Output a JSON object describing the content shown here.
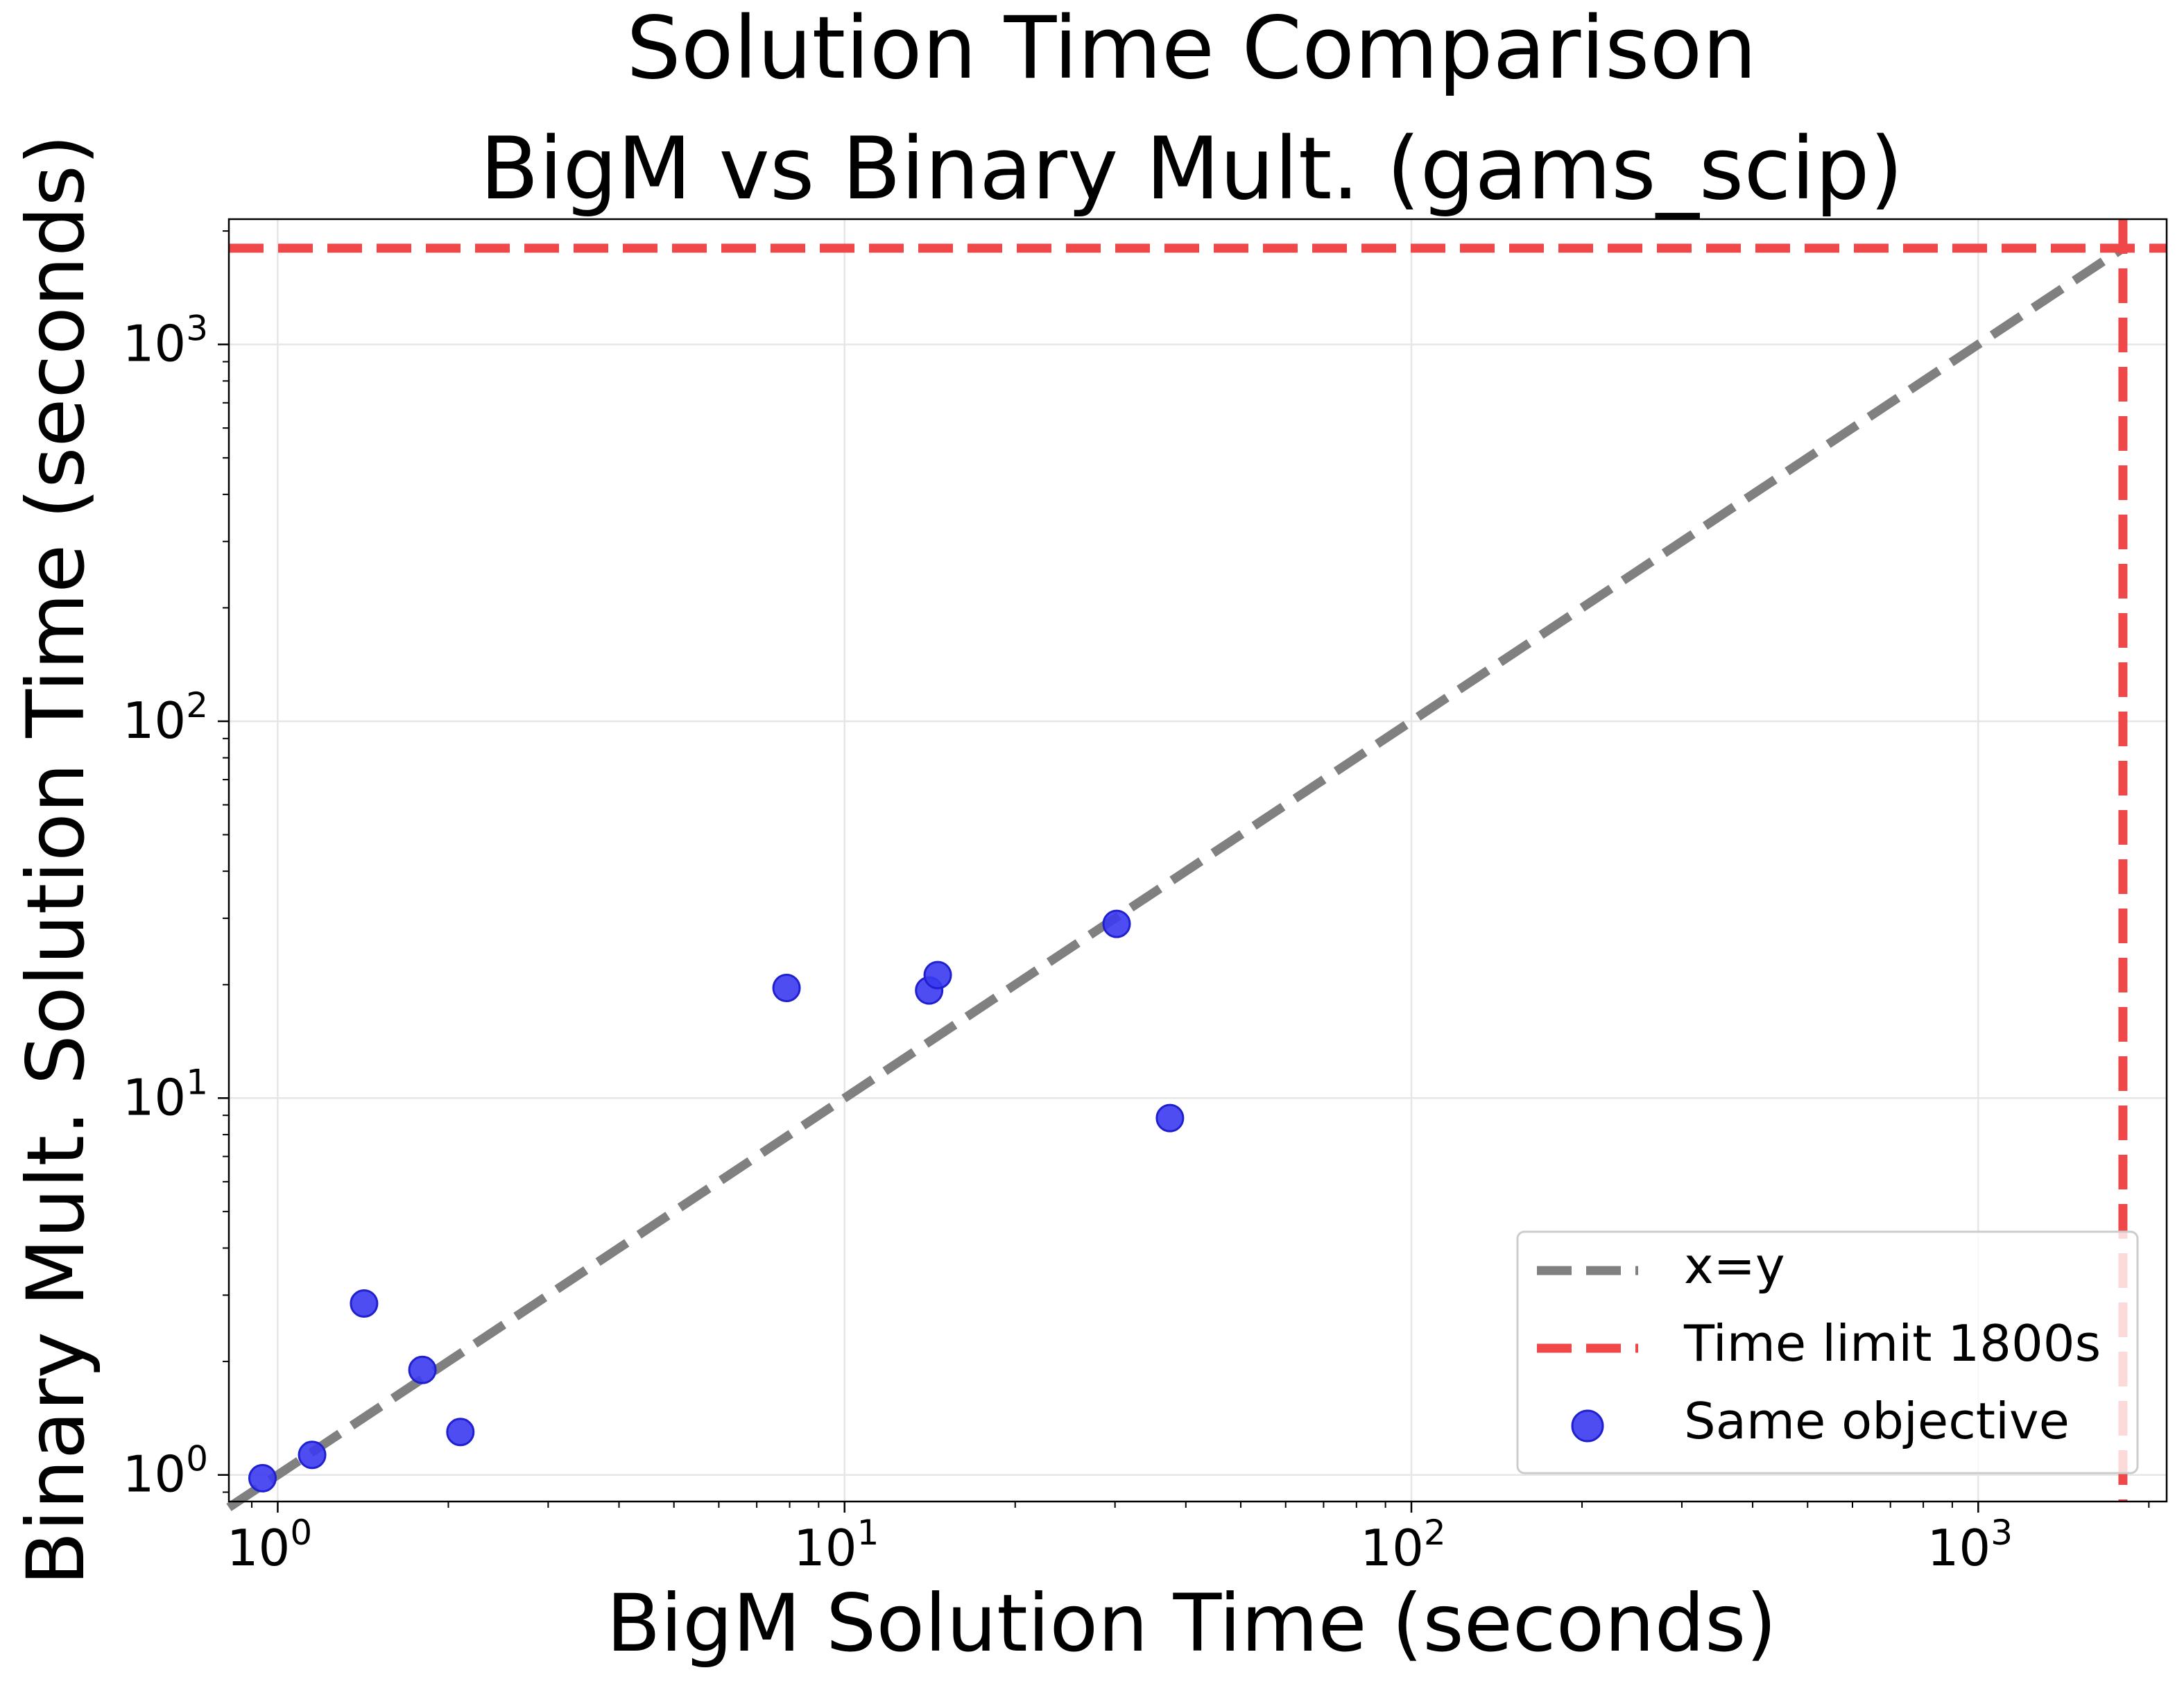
{
  "chart_data": {
    "type": "scatter",
    "title": [
      "Solution Time Comparison",
      "BigM vs Binary Mult. (gams_scip)"
    ],
    "xlabel": "BigM Solution Time (seconds)",
    "ylabel": "Binary Mult. Solution Time (seconds)",
    "xscale": "log",
    "yscale": "log",
    "xlim": [
      0.82,
      2150
    ],
    "ylim": [
      0.85,
      2150
    ],
    "grid": true,
    "legend_position": "lower-right",
    "x_ticks": [
      {
        "value": 1,
        "base": "10",
        "exp": "0"
      },
      {
        "value": 10,
        "base": "10",
        "exp": "1"
      },
      {
        "value": 100,
        "base": "10",
        "exp": "2"
      },
      {
        "value": 1000,
        "base": "10",
        "exp": "3"
      }
    ],
    "y_ticks": [
      {
        "value": 1,
        "base": "10",
        "exp": "0"
      },
      {
        "value": 10,
        "base": "10",
        "exp": "1"
      },
      {
        "value": 100,
        "base": "10",
        "exp": "2"
      },
      {
        "value": 1000,
        "base": "10",
        "exp": "3"
      }
    ],
    "series": [
      {
        "name": "x=y",
        "kind": "diagonal",
        "color": "#808080",
        "x": [
          0.82,
          1800
        ],
        "y": [
          0.82,
          1800
        ]
      },
      {
        "name": "Time limit 1800s",
        "kind": "limit",
        "color": "#f04848",
        "value": 1800
      },
      {
        "name": "Same objective",
        "kind": "points",
        "color": "#3a3af0",
        "x": [
          0.94,
          1.15,
          1.42,
          1.8,
          2.1,
          7.9,
          14.1,
          14.6,
          30.2,
          37.5
        ],
        "y": [
          0.98,
          1.13,
          2.85,
          1.9,
          1.3,
          19.6,
          19.3,
          21.2,
          29.0,
          8.85
        ]
      }
    ]
  }
}
